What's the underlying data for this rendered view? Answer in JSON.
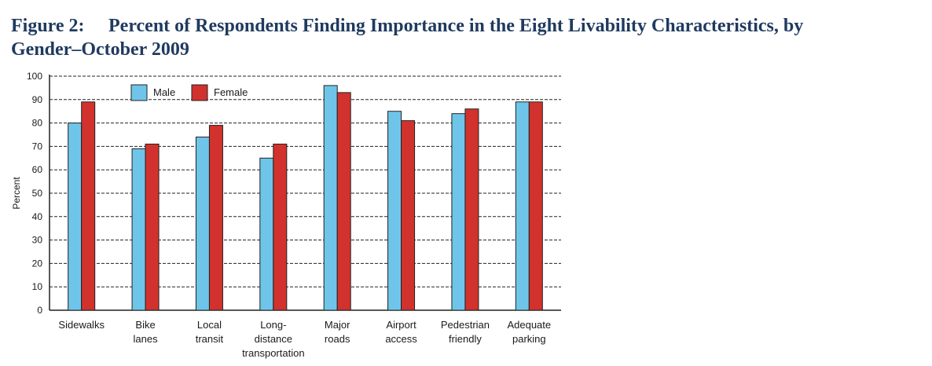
{
  "figure": {
    "number": "Figure 2:",
    "title_line1": "Percent of Respondents Finding Importance in the Eight Livability Characteristics, by",
    "title_line2": "Gender–October 2009"
  },
  "chart_data": {
    "type": "bar",
    "ylabel": "Percent",
    "xlabel": "",
    "ylim": [
      0,
      100
    ],
    "yticks": [
      0,
      10,
      20,
      30,
      40,
      50,
      60,
      70,
      80,
      90,
      100
    ],
    "grid": "horizontal dashed",
    "legend_position": "top-left",
    "categories": [
      [
        "Sidewalks"
      ],
      [
        "Bike",
        "lanes"
      ],
      [
        "Local",
        "transit"
      ],
      [
        "Long-",
        "distance",
        "transportation"
      ],
      [
        "Major",
        "roads"
      ],
      [
        "Airport",
        "access"
      ],
      [
        "Pedestrian",
        "friendly"
      ],
      [
        "Adequate",
        "parking"
      ]
    ],
    "series": [
      {
        "name": "Male",
        "color": "#6fc5e9",
        "values": [
          80,
          69,
          74,
          65,
          96,
          85,
          84,
          89
        ]
      },
      {
        "name": "Female",
        "color": "#d2322d",
        "values": [
          89,
          71,
          79,
          71,
          93,
          81,
          86,
          89
        ]
      }
    ]
  }
}
